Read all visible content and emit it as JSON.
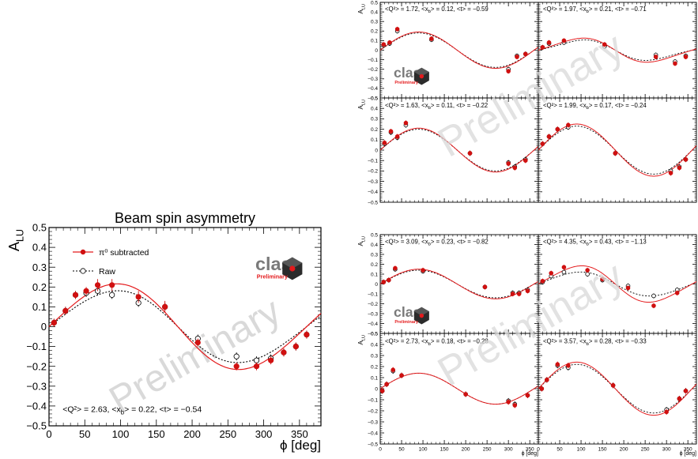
{
  "colors": {
    "subtracted": "#e41a1c",
    "subtracted_marker": "#d01010",
    "raw": "#000000",
    "watermark": "#d9d9d9",
    "clas_logo": "#7a7a7a",
    "preliminary": "#e41a1c"
  },
  "watermark_text": "Preliminary",
  "logo": {
    "word": "clas",
    "badge": "Preliminary"
  },
  "chart_data": [
    {
      "type": "scatter",
      "title": "Beam spin asymmetry",
      "ylabel": "A_LU",
      "xlabel": "ϕ [deg]",
      "xlim": [
        0,
        380
      ],
      "ylim": [
        -0.5,
        0.5
      ],
      "xticks": [
        "0",
        "50",
        "100",
        "150",
        "200",
        "250",
        "300",
        "350"
      ],
      "yticks": [
        "−0.5",
        "−0.4",
        "−0.3",
        "−0.2",
        "−0.1",
        "0",
        "0.1",
        "0.2",
        "0.3",
        "0.4",
        "0.5"
      ],
      "annotation": "<Q²> = 2.63, <x_b> = 0.22, <t> = −0.54",
      "legend": [
        {
          "label": "π⁰ subtracted",
          "series": "subtracted"
        },
        {
          "label": "Raw",
          "series": "raw"
        }
      ],
      "series": [
        {
          "name": "π⁰ subtracted",
          "x": [
            7,
            23,
            37,
            52,
            68,
            88,
            125,
            162,
            208,
            262,
            290,
            310,
            328,
            345,
            360
          ],
          "y": [
            0.02,
            0.08,
            0.16,
            0.18,
            0.21,
            0.21,
            0.15,
            0.1,
            -0.08,
            -0.2,
            -0.2,
            -0.17,
            -0.13,
            -0.1,
            -0.04
          ],
          "err": [
            0.02,
            0.02,
            0.02,
            0.02,
            0.03,
            0.03,
            0.03,
            0.03,
            0.02,
            0.02,
            0.02,
            0.02,
            0.02,
            0.02,
            0.02
          ],
          "fit": [
            0.0,
            0.215,
            -0.01
          ]
        },
        {
          "name": "Raw",
          "x": [
            7,
            23,
            37,
            52,
            68,
            88,
            125,
            162,
            208,
            262,
            290,
            310,
            328,
            345,
            360
          ],
          "y": [
            0.02,
            0.08,
            0.16,
            0.17,
            0.18,
            0.16,
            0.12,
            0.1,
            -0.06,
            -0.15,
            -0.17,
            -0.16,
            -0.13,
            -0.1,
            -0.04
          ],
          "err": [
            0.02,
            0.02,
            0.02,
            0.02,
            0.02,
            0.02,
            0.02,
            0.02,
            0.02,
            0.02,
            0.02,
            0.02,
            0.02,
            0.02,
            0.02
          ],
          "fit": [
            0.0,
            0.18,
            -0.01
          ]
        }
      ]
    },
    {
      "type": "scatter",
      "ylabel": "A_LU",
      "xlabel": "",
      "xlim": [
        0,
        370
      ],
      "ylim": [
        -0.5,
        0.5
      ],
      "annotation": "<Q²> = 1.72, <x_b> = 0.12, <t> = −0.59",
      "series": [
        {
          "name": "π⁰ subtracted",
          "x": [
            8,
            22,
            40,
            120,
            300,
            320,
            340
          ],
          "y": [
            0.06,
            0.08,
            0.22,
            0.12,
            -0.22,
            -0.07,
            -0.04
          ],
          "fit": [
            0.0,
            0.19,
            0.0
          ]
        },
        {
          "name": "Raw",
          "x": [
            8,
            22,
            40,
            120,
            300,
            320,
            340
          ],
          "y": [
            0.05,
            0.07,
            0.2,
            0.11,
            -0.2,
            -0.06,
            -0.04
          ],
          "fit": [
            0.0,
            0.18,
            0.0
          ]
        }
      ]
    },
    {
      "type": "scatter",
      "ylabel": "",
      "xlabel": "",
      "xlim": [
        0,
        370
      ],
      "ylim": [
        -0.5,
        0.5
      ],
      "annotation": "<Q²> = 1.97, <x_b> = 0.21, <t> = −0.71",
      "series": [
        {
          "name": "π⁰ subtracted",
          "x": [
            10,
            25,
            60,
            155,
            275,
            320,
            345
          ],
          "y": [
            0.03,
            0.08,
            0.1,
            0.06,
            -0.07,
            -0.14,
            -0.07
          ],
          "fit": [
            0.0,
            0.12,
            -0.02
          ]
        },
        {
          "name": "Raw",
          "x": [
            10,
            25,
            60,
            155,
            275,
            320,
            345
          ],
          "y": [
            0.03,
            0.07,
            0.08,
            0.04,
            -0.05,
            -0.12,
            -0.06
          ],
          "fit": [
            0.0,
            0.1,
            -0.02
          ]
        }
      ]
    },
    {
      "type": "scatter",
      "ylabel": "A_LU",
      "xlabel": "",
      "xlim": [
        0,
        370
      ],
      "ylim": [
        -0.5,
        0.5
      ],
      "annotation": "<Q²> = 1.63, <x_b> = 0.11, <t> = −0.22",
      "series": [
        {
          "name": "π⁰ subtracted",
          "x": [
            10,
            25,
            40,
            60,
            210,
            300,
            315,
            340
          ],
          "y": [
            0.07,
            0.18,
            0.13,
            0.26,
            -0.03,
            -0.13,
            -0.17,
            -0.1
          ],
          "fit": [
            0.0,
            0.21,
            0.0
          ]
        },
        {
          "name": "Raw",
          "x": [
            10,
            25,
            40,
            60,
            210,
            300,
            315,
            340
          ],
          "y": [
            0.06,
            0.17,
            0.12,
            0.24,
            -0.03,
            -0.12,
            -0.16,
            -0.09
          ],
          "fit": [
            0.0,
            0.2,
            0.0
          ]
        }
      ]
    },
    {
      "type": "scatter",
      "ylabel": "",
      "xlabel": "",
      "xlim": [
        0,
        370
      ],
      "ylim": [
        -0.5,
        0.5
      ],
      "annotation": "<Q²> = 1.99, <x_b> = 0.17, <t> = −0.24",
      "series": [
        {
          "name": "π⁰ subtracted",
          "x": [
            10,
            25,
            45,
            70,
            180,
            310,
            330,
            345
          ],
          "y": [
            0.06,
            0.13,
            0.2,
            0.24,
            -0.03,
            -0.22,
            -0.17,
            -0.09
          ],
          "fit": [
            0.0,
            0.25,
            0.0
          ]
        },
        {
          "name": "Raw",
          "x": [
            10,
            25,
            45,
            70,
            180,
            310,
            330,
            345
          ],
          "y": [
            0.06,
            0.13,
            0.2,
            0.22,
            -0.03,
            -0.2,
            -0.16,
            -0.09
          ],
          "fit": [
            0.0,
            0.23,
            0.0
          ]
        }
      ]
    },
    {
      "type": "scatter",
      "ylabel": "A_LU",
      "xlabel": "",
      "xlim": [
        0,
        370
      ],
      "ylim": [
        -0.5,
        0.5
      ],
      "annotation": "<Q²> = 3.09, <x_b> = 0.23, <t> = −0.82",
      "series": [
        {
          "name": "π⁰ subtracted",
          "x": [
            8,
            20,
            35,
            100,
            245,
            310,
            325,
            345
          ],
          "y": [
            0.02,
            0.04,
            0.16,
            0.14,
            -0.03,
            -0.1,
            -0.1,
            -0.07
          ],
          "fit": [
            0.0,
            0.15,
            0.0
          ]
        },
        {
          "name": "Raw",
          "x": [
            8,
            20,
            35,
            100,
            245,
            310,
            325,
            345
          ],
          "y": [
            0.02,
            0.04,
            0.15,
            0.13,
            -0.03,
            -0.09,
            -0.09,
            -0.06
          ],
          "fit": [
            0.0,
            0.14,
            0.0
          ]
        }
      ]
    },
    {
      "type": "scatter",
      "ylabel": "",
      "xlabel": "",
      "xlim": [
        0,
        370
      ],
      "ylim": [
        -0.5,
        0.5
      ],
      "annotation": "<Q²> = 4.35, <x_b> = 0.43, <t> = −1.13",
      "series": [
        {
          "name": "π⁰ subtracted",
          "x": [
            10,
            30,
            60,
            115,
            150,
            210,
            270,
            325
          ],
          "y": [
            0.03,
            0.11,
            0.17,
            0.14,
            0.05,
            -0.04,
            -0.22,
            -0.09
          ],
          "fit": [
            0.0,
            0.18,
            -0.02
          ]
        },
        {
          "name": "Raw",
          "x": [
            10,
            30,
            60,
            115,
            150,
            210,
            270,
            325
          ],
          "y": [
            0.02,
            0.08,
            0.12,
            0.1,
            0.04,
            -0.02,
            -0.12,
            -0.06
          ],
          "fit": [
            0.0,
            0.12,
            -0.01
          ]
        }
      ]
    },
    {
      "type": "scatter",
      "ylabel": "A_LU",
      "xlabel": "ϕ [deg]",
      "xlim": [
        0,
        370
      ],
      "ylim": [
        -0.5,
        0.5
      ],
      "xticks": [
        "0",
        "50",
        "100",
        "150",
        "200",
        "250",
        "300",
        "350"
      ],
      "annotation": "<Q²> = 2.73, <x_b> = 0.18, <t> = −0.28",
      "series": [
        {
          "name": "π⁰ subtracted",
          "x": [
            5,
            15,
            30,
            50,
            200,
            300,
            315,
            345
          ],
          "y": [
            -0.02,
            0.04,
            0.17,
            0.12,
            -0.05,
            -0.12,
            -0.15,
            -0.06
          ],
          "fit": [
            0.0,
            0.14,
            0.0
          ]
        },
        {
          "name": "Raw",
          "x": [
            5,
            15,
            30,
            50,
            200,
            300,
            315,
            345
          ],
          "y": [
            -0.02,
            0.04,
            0.16,
            0.12,
            -0.05,
            -0.11,
            -0.14,
            -0.06
          ],
          "fit": [
            0.0,
            0.14,
            0.0
          ]
        }
      ]
    },
    {
      "type": "scatter",
      "ylabel": "",
      "xlabel": "ϕ [deg]",
      "xlim": [
        0,
        370
      ],
      "ylim": [
        -0.5,
        0.5
      ],
      "xticks": [
        "0",
        "50",
        "100",
        "150",
        "200",
        "250",
        "300",
        "350"
      ],
      "annotation": "<Q²> = 3.57, <x_b> = 0.28, <t> = −0.33",
      "series": [
        {
          "name": "π⁰ subtracted",
          "x": [
            8,
            20,
            45,
            70,
            175,
            300,
            330,
            345
          ],
          "y": [
            0.0,
            0.08,
            0.22,
            0.21,
            0.03,
            -0.21,
            -0.09,
            -0.02
          ],
          "fit": [
            0.0,
            0.24,
            0.0
          ]
        },
        {
          "name": "Raw",
          "x": [
            8,
            20,
            45,
            70,
            175,
            300,
            330,
            345
          ],
          "y": [
            0.0,
            0.08,
            0.21,
            0.19,
            0.03,
            -0.19,
            -0.09,
            -0.02
          ],
          "fit": [
            0.0,
            0.22,
            0.0
          ]
        }
      ]
    }
  ]
}
